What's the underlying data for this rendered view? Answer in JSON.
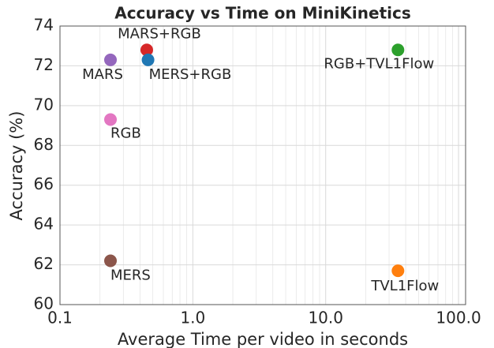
{
  "chart_data": {
    "type": "scatter",
    "title": "Accuracy vs Time on MiniKinetics",
    "x_label": "Average Time per video in seconds",
    "y_label": "Accuracy (%)",
    "xscale": "log",
    "grid": true,
    "xlim": [
      0.1,
      113
    ],
    "ylim": [
      60,
      74
    ],
    "xticks": [
      0.1,
      {
        "value": 1,
        "label": "1.0"
      },
      {
        "value": 10,
        "label": "10.0"
      },
      {
        "value": 100,
        "label": "100.0"
      }
    ],
    "yticks": [
      60,
      62,
      64,
      66,
      68,
      70,
      72,
      74
    ],
    "series": [
      {
        "name": "MARS+RGB",
        "color": "#d62728",
        "x": [
          0.45
        ],
        "values": [
          72.8
        ]
      },
      {
        "name": "MERS+RGB",
        "color": "#1f77b4",
        "x": [
          0.46
        ],
        "values": [
          72.3
        ]
      },
      {
        "name": "MARS",
        "color": "#9467bd",
        "x": [
          0.24
        ],
        "values": [
          72.3
        ]
      },
      {
        "name": "RGB",
        "color": "#e377c2",
        "x": [
          0.24
        ],
        "values": [
          69.3
        ]
      },
      {
        "name": "MERS",
        "color": "#8c564b",
        "x": [
          0.24
        ],
        "values": [
          62.2
        ]
      },
      {
        "name": "RGB+TVL1Flow",
        "color": "#2ca02c",
        "x": [
          35
        ],
        "values": [
          72.8
        ]
      },
      {
        "name": "TVL1Flow",
        "color": "#ff7f0e",
        "x": [
          35
        ],
        "values": [
          61.7
        ]
      }
    ]
  }
}
